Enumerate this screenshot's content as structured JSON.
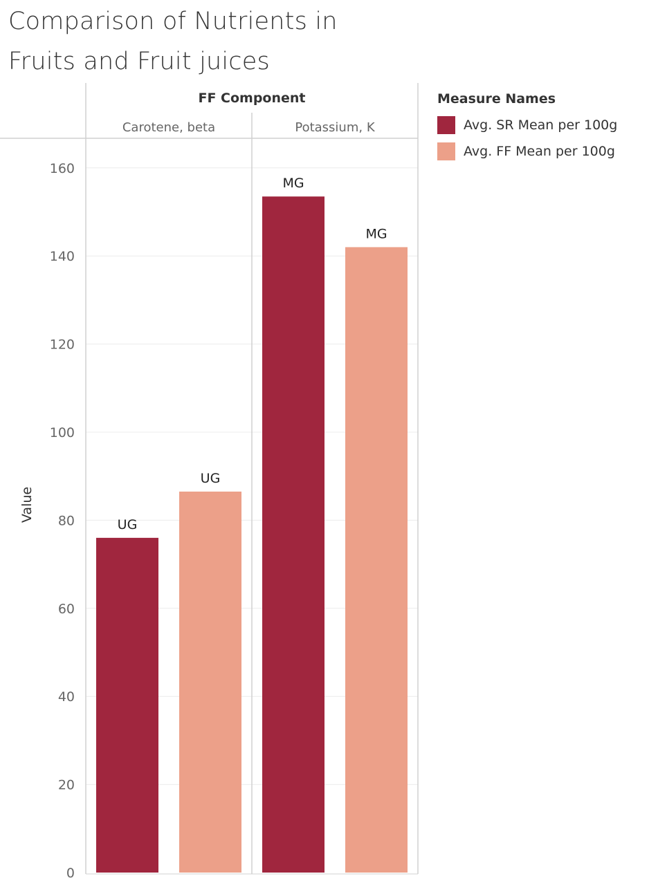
{
  "chart_data": {
    "type": "bar",
    "title_lines": [
      "Comparison of Nutrients in",
      "Fruits and Fruit juices"
    ],
    "column_header": "FF Component",
    "categories": [
      "Carotene, beta",
      "Potassium, K"
    ],
    "ylabel": "Value",
    "ylim": [
      0,
      165
    ],
    "yticks": [
      0,
      20,
      40,
      60,
      80,
      100,
      120,
      140,
      160
    ],
    "series": [
      {
        "name": "Avg. SR Mean per 100g",
        "color": "#a0263e",
        "values": [
          76,
          153.5
        ],
        "labels": [
          "UG",
          "MG"
        ]
      },
      {
        "name": "Avg. FF Mean per 100g",
        "color": "#eca089",
        "values": [
          86.5,
          142
        ],
        "labels": [
          "UG",
          "MG"
        ]
      }
    ],
    "legend_title": "Measure Names",
    "legend_position": "top-right",
    "grid": true
  }
}
